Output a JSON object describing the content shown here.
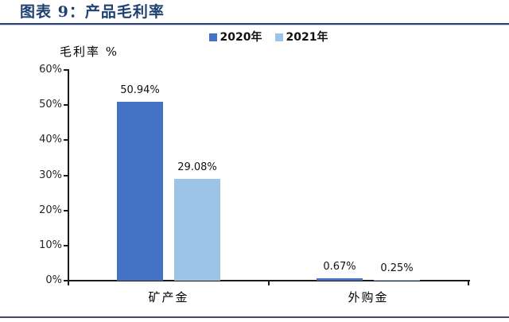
{
  "page": {
    "title": "图表 9：产品毛利率"
  },
  "chart_data": {
    "type": "bar",
    "title": "图表 9：产品毛利率",
    "ylabel": "毛利率 %",
    "xlabel": "",
    "categories": [
      "矿产金",
      "外购金"
    ],
    "series": [
      {
        "name": "2020年",
        "color": "#4472C4",
        "values": [
          50.94,
          0.67
        ],
        "value_labels": [
          "50.94%",
          "0.67%"
        ]
      },
      {
        "name": "2021年",
        "color": "#9DC3E6",
        "values": [
          29.08,
          0.25
        ],
        "value_labels": [
          "29.08%",
          "0.25%"
        ]
      }
    ],
    "ylim": [
      0,
      60
    ],
    "yticks": [
      0,
      10,
      20,
      30,
      40,
      50,
      60
    ],
    "ytick_labels": [
      "0%",
      "10%",
      "20%",
      "30%",
      "40%",
      "50%",
      "60%"
    ],
    "grid": false,
    "legend_position": "top-center"
  },
  "style": {
    "series_dark_blue": "#4472C4",
    "series_light_blue": "#9DC3E6",
    "title_color": "#1F4172",
    "header_rule_color": "#2F4571",
    "footer_rule_color": "#4A4A5E",
    "axis_color": "#1a1a1a",
    "text_color": "#111111"
  }
}
